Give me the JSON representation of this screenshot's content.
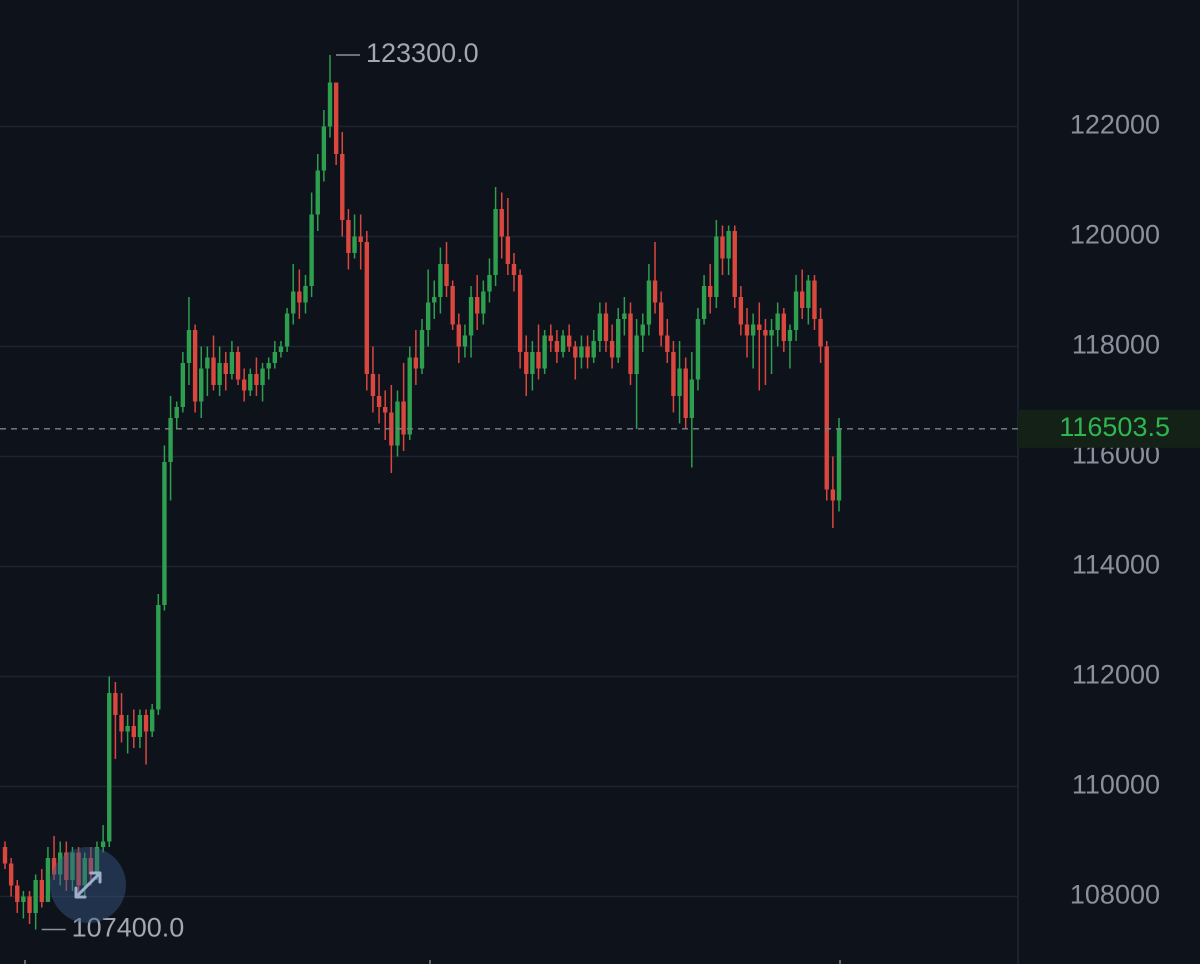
{
  "chart_data": {
    "type": "candlestick",
    "up_color": "#2e9e4f",
    "down_color": "#d9473f",
    "grid": true,
    "ylim": [
      106900,
      124300
    ],
    "yticks": [
      108000,
      110000,
      112000,
      114000,
      116000,
      118000,
      120000,
      122000
    ],
    "max_marker": {
      "value": 123300,
      "label": "123300.0"
    },
    "min_marker": {
      "value": 107400,
      "label": "107400.0"
    },
    "last_price": 116503.5,
    "last_price_color": "#2fb552",
    "open": [
      108900,
      108600,
      108200,
      107900,
      108000,
      107700,
      108300,
      107900,
      108700,
      108400,
      108800,
      108300,
      108800,
      108200,
      108700,
      108400,
      108900,
      109000,
      111700,
      111300,
      111000,
      111100,
      110900,
      111300,
      111000,
      111400,
      113300,
      115900,
      116700,
      116900,
      117700,
      118300,
      117000,
      117600,
      117800,
      117300,
      117700,
      117500,
      117900,
      117400,
      117200,
      117500,
      117300,
      117600,
      117700,
      117900,
      118000,
      118600,
      119000,
      118800,
      119100,
      120400,
      121200,
      122000,
      122800,
      121500,
      120300,
      119700,
      120000,
      119900,
      117500,
      117100,
      116900,
      116800,
      116200,
      117000,
      116400,
      117800,
      117600,
      118300,
      118800,
      118900,
      119500,
      119100,
      118400,
      118000,
      118200,
      118900,
      118600,
      119000,
      119300,
      120500,
      120000,
      119500,
      119300,
      117900,
      117500,
      117900,
      117600,
      118200,
      118100,
      117900,
      118200,
      118000,
      117800,
      118000,
      117800,
      118100,
      118600,
      118100,
      117800,
      118500,
      118600,
      117500,
      118200,
      118400,
      119200,
      118800,
      118200,
      117900,
      117100,
      117600,
      116700,
      117400,
      118500,
      119100,
      118900,
      120000,
      119600,
      120100,
      118900,
      118400,
      118200,
      118400,
      118300,
      118200,
      118300,
      118600,
      118100,
      118300,
      119000,
      118700,
      119200,
      118500,
      118000,
      115400,
      115200
    ],
    "high": [
      109000,
      108700,
      108300,
      108100,
      108100,
      108400,
      108500,
      108900,
      109100,
      109000,
      109000,
      108900,
      108900,
      108800,
      108900,
      109000,
      109300,
      112000,
      111900,
      111700,
      111300,
      111400,
      111400,
      111400,
      111500,
      113500,
      116200,
      117100,
      117000,
      117900,
      118900,
      118400,
      118000,
      118000,
      118200,
      118000,
      117900,
      118100,
      118000,
      117600,
      117600,
      117800,
      117700,
      117800,
      118100,
      118100,
      118700,
      119500,
      119400,
      119300,
      120800,
      121500,
      122300,
      123300,
      122800,
      121900,
      120500,
      120400,
      120400,
      120100,
      118000,
      117500,
      117200,
      117300,
      117200,
      117700,
      118000,
      118300,
      118500,
      119400,
      119200,
      119800,
      119900,
      119200,
      118600,
      118400,
      119100,
      119300,
      119200,
      119600,
      120900,
      120800,
      120700,
      119700,
      119400,
      118200,
      118100,
      118400,
      118300,
      118400,
      118300,
      118300,
      118400,
      118100,
      118200,
      118200,
      118300,
      118800,
      118800,
      118400,
      118700,
      118900,
      118800,
      118500,
      118600,
      119500,
      119900,
      119000,
      118500,
      118100,
      118100,
      117800,
      117900,
      118700,
      119300,
      119500,
      120300,
      120200,
      120200,
      120200,
      119100,
      118700,
      118600,
      118800,
      118500,
      118500,
      118800,
      118700,
      118400,
      119300,
      119400,
      119300,
      119300,
      118700,
      118100,
      116000,
      116700
    ],
    "low": [
      108500,
      108000,
      107700,
      107600,
      107500,
      107400,
      107800,
      107900,
      108300,
      108200,
      108100,
      108100,
      108000,
      108000,
      108200,
      108300,
      108800,
      108900,
      110500,
      110800,
      110600,
      110700,
      110700,
      110400,
      110900,
      111300,
      113200,
      115200,
      116500,
      116800,
      117300,
      116800,
      116700,
      117100,
      117200,
      117100,
      117200,
      117400,
      117300,
      117000,
      117100,
      117100,
      117000,
      117400,
      117600,
      117800,
      117900,
      118400,
      118500,
      118600,
      118900,
      120100,
      121000,
      121800,
      121300,
      120000,
      119400,
      119600,
      119400,
      117200,
      116800,
      116600,
      116300,
      115700,
      116000,
      116100,
      116300,
      117300,
      117500,
      118000,
      118500,
      118600,
      118900,
      118300,
      117700,
      117800,
      117800,
      118300,
      118400,
      118800,
      119100,
      119600,
      119300,
      119000,
      117600,
      117100,
      117200,
      117400,
      117500,
      117900,
      117700,
      117800,
      117900,
      117400,
      117600,
      117600,
      117700,
      117900,
      117900,
      117600,
      117700,
      118200,
      117300,
      116500,
      117900,
      118200,
      118600,
      118000,
      117700,
      116800,
      116600,
      116500,
      115800,
      117200,
      118400,
      118600,
      118700,
      119300,
      119300,
      118700,
      118200,
      117800,
      117600,
      117200,
      117300,
      117500,
      118000,
      117900,
      117600,
      118100,
      118500,
      118400,
      118300,
      117700,
      115200,
      114700,
      115000
    ],
    "close": [
      108600,
      108200,
      107900,
      108000,
      107700,
      108300,
      107900,
      108700,
      108400,
      108800,
      108300,
      108800,
      108200,
      108700,
      108400,
      108900,
      109000,
      111700,
      111300,
      111000,
      111100,
      110900,
      111300,
      111000,
      111400,
      113300,
      115900,
      116700,
      116900,
      117700,
      118300,
      117000,
      117600,
      117800,
      117300,
      117700,
      117500,
      117900,
      117400,
      117200,
      117500,
      117300,
      117600,
      117700,
      117900,
      118000,
      118600,
      119000,
      118800,
      119100,
      120400,
      121200,
      122000,
      122800,
      121500,
      120300,
      119700,
      120000,
      119900,
      117500,
      117100,
      116900,
      116800,
      116200,
      117000,
      116400,
      117800,
      117600,
      118300,
      118800,
      118900,
      119500,
      119100,
      118400,
      118000,
      118200,
      118900,
      118600,
      119000,
      119300,
      120500,
      120000,
      119500,
      119300,
      117900,
      117500,
      117900,
      117600,
      118200,
      118100,
      117900,
      118200,
      118000,
      117800,
      118000,
      117800,
      118100,
      118600,
      118100,
      117800,
      118500,
      118600,
      117500,
      118200,
      118400,
      119200,
      118800,
      118200,
      117900,
      117100,
      117600,
      116700,
      117400,
      118500,
      119100,
      118900,
      120000,
      119600,
      120100,
      118900,
      118400,
      118200,
      118400,
      118300,
      118200,
      118300,
      118600,
      118100,
      118300,
      119000,
      118700,
      119200,
      118500,
      118000,
      115400,
      115200,
      116503.5
    ]
  }
}
